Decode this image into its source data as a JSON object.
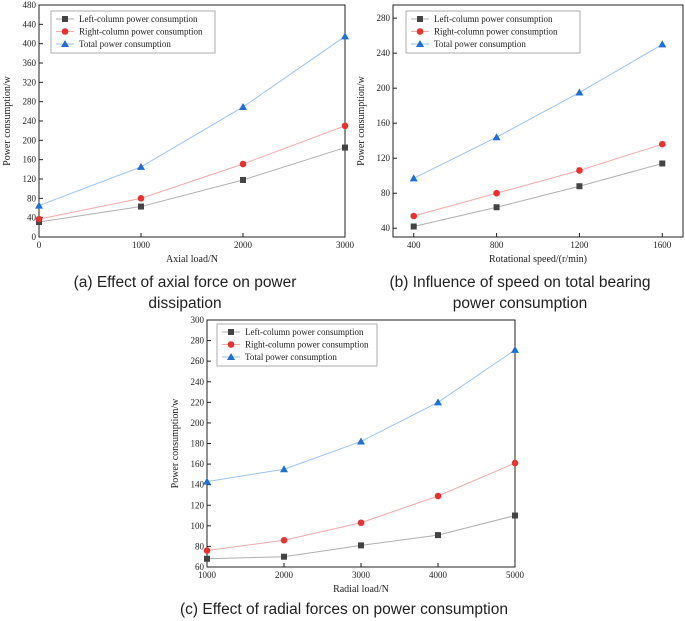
{
  "chart_data": [
    {
      "type": "line",
      "x": [
        0,
        1000,
        2000,
        3000
      ],
      "xlim": [
        0,
        3000
      ],
      "xticks": [
        0,
        1000,
        2000,
        3000
      ],
      "ylim": [
        0,
        480
      ],
      "yticks": [
        0,
        40,
        80,
        120,
        160,
        200,
        240,
        280,
        320,
        360,
        400,
        440,
        480
      ],
      "xlabel": "Axial load/N",
      "ylabel": "Power consumption/w",
      "legend": "top-left",
      "series": [
        {
          "name": "Left-column power consumption",
          "marker": "square",
          "color": "#444444",
          "line_color": "#b0b0b0",
          "values": [
            31,
            63,
            118,
            185
          ]
        },
        {
          "name": "Right-column power consumption",
          "marker": "circle",
          "color": "#e8322f",
          "line_color": "#f3aaaa",
          "values": [
            37,
            80,
            151,
            230
          ]
        },
        {
          "name": "Total power consumption",
          "marker": "triangle",
          "color": "#1f6fd6",
          "line_color": "#9cc3f0",
          "values": [
            65,
            145,
            269,
            415
          ]
        }
      ],
      "caption": [
        "(a) Effect of axial force on power",
        "dissipation"
      ]
    },
    {
      "type": "line",
      "x": [
        400,
        800,
        1200,
        1600
      ],
      "xlim": [
        300,
        1700
      ],
      "xticks": [
        400,
        800,
        1200,
        1600
      ],
      "ylim": [
        30,
        295
      ],
      "yticks": [
        40,
        80,
        120,
        160,
        200,
        240,
        280
      ],
      "xlabel": "Rotational speed/(r/min)",
      "ylabel": "Power consumption/w",
      "legend": "top-left",
      "series": [
        {
          "name": "Left-column power consumption",
          "marker": "square",
          "color": "#444444",
          "line_color": "#b0b0b0",
          "values": [
            42,
            64,
            88,
            114
          ]
        },
        {
          "name": "Right-column power consumption",
          "marker": "circle",
          "color": "#e8322f",
          "line_color": "#f3aaaa",
          "values": [
            54,
            80,
            106,
            136
          ]
        },
        {
          "name": "Total power consumption",
          "marker": "triangle",
          "color": "#1f6fd6",
          "line_color": "#9cc3f0",
          "values": [
            97,
            144,
            195,
            250
          ]
        }
      ],
      "caption": [
        "(b) Influence of speed on total bearing",
        "power consumption"
      ]
    },
    {
      "type": "line",
      "x": [
        1000,
        2000,
        3000,
        4000,
        5000
      ],
      "xlim": [
        1000,
        5000
      ],
      "xticks": [
        1000,
        2000,
        3000,
        4000,
        5000
      ],
      "ylim": [
        60,
        300
      ],
      "yticks": [
        60,
        80,
        100,
        120,
        140,
        160,
        180,
        200,
        220,
        240,
        260,
        280,
        300
      ],
      "xlabel": "Radial load/N",
      "ylabel": "Power consumption/w",
      "legend": "top-left",
      "series": [
        {
          "name": "Left-column power consumption",
          "marker": "square",
          "color": "#444444",
          "line_color": "#b0b0b0",
          "values": [
            68,
            70,
            81,
            91,
            110
          ]
        },
        {
          "name": "Right-column power consumption",
          "marker": "circle",
          "color": "#e8322f",
          "line_color": "#f3aaaa",
          "values": [
            76,
            86,
            103,
            129,
            161
          ]
        },
        {
          "name": "Total power consumption",
          "marker": "triangle",
          "color": "#1f6fd6",
          "line_color": "#9cc3f0",
          "values": [
            143,
            155,
            182,
            220,
            271
          ]
        }
      ],
      "caption": [
        "(c) Effect of radial forces on power consumption"
      ]
    }
  ]
}
